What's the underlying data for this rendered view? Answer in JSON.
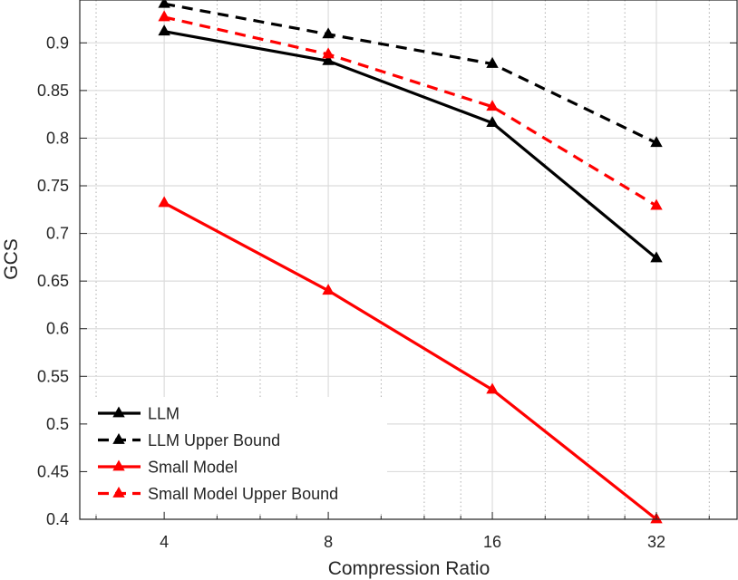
{
  "chart_data": {
    "type": "line",
    "title": "",
    "xlabel": "Compression Ratio",
    "ylabel": "GCS",
    "x_scale": "log2",
    "xlim": [
      2.8,
      45
    ],
    "ylim": [
      0.4,
      0.945
    ],
    "x": [
      4,
      8,
      16,
      32
    ],
    "x_tick_labels": [
      "4",
      "8",
      "16",
      "32"
    ],
    "y_ticks": [
      0.4,
      0.45,
      0.5,
      0.55,
      0.6,
      0.65,
      0.7,
      0.75,
      0.8,
      0.85,
      0.9
    ],
    "y_tick_labels": [
      "0.4",
      "0.45",
      "0.5",
      "0.55",
      "0.6",
      "0.65",
      "0.7",
      "0.75",
      "0.8",
      "0.85",
      "0.9"
    ],
    "grid": true,
    "legend_position": "bottom-left",
    "series": [
      {
        "name": "LLM",
        "values": [
          0.912,
          0.881,
          0.816,
          0.674
        ],
        "color": "#000000",
        "dashed": false,
        "marker": "triangle"
      },
      {
        "name": "LLM Upper Bound",
        "values": [
          0.941,
          0.909,
          0.878,
          0.795
        ],
        "color": "#000000",
        "dashed": true,
        "marker": "triangle"
      },
      {
        "name": "Small Model",
        "values": [
          0.732,
          0.64,
          0.536,
          0.4
        ],
        "color": "#ff0000",
        "dashed": false,
        "marker": "triangle"
      },
      {
        "name": "Small Model Upper Bound",
        "values": [
          0.927,
          0.888,
          0.833,
          0.729
        ],
        "color": "#ff0000",
        "dashed": true,
        "marker": "triangle"
      }
    ]
  }
}
